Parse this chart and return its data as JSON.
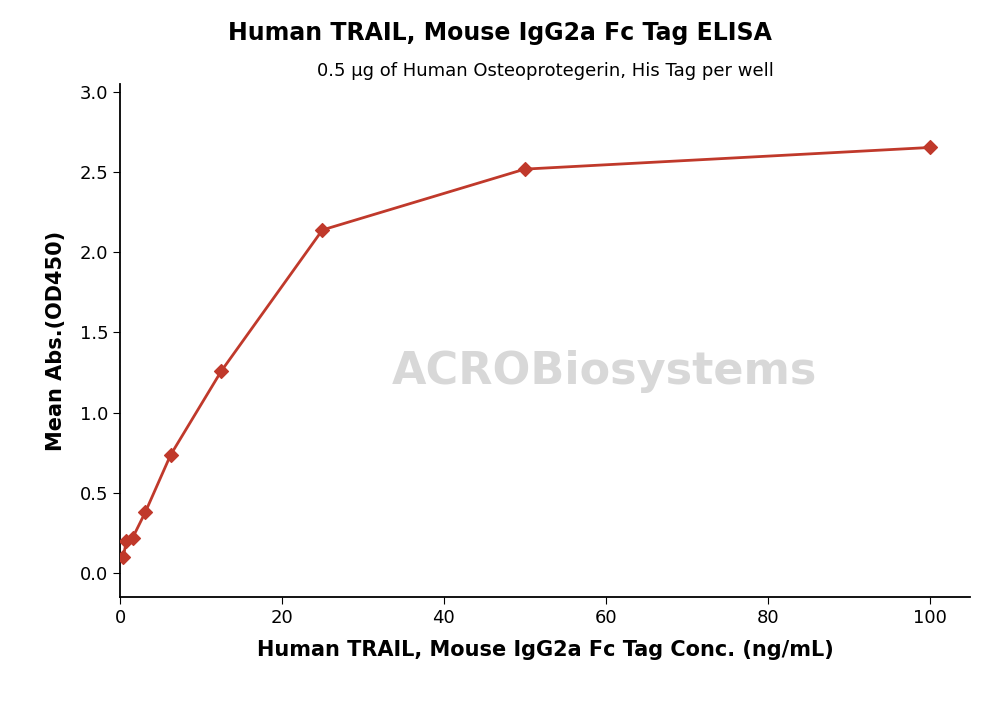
{
  "title": "Human TRAIL, Mouse IgG2a Fc Tag ELISA",
  "subtitle": "0.5 μg of Human Osteoprotegerin, His Tag per well",
  "xlabel": "Human TRAIL, Mouse IgG2a Fc Tag Conc. (ng/mL)",
  "ylabel": "Mean Abs.(OD450)",
  "x_data": [
    0.4,
    0.78,
    1.56,
    3.13,
    6.25,
    12.5,
    25,
    50,
    100
  ],
  "y_data": [
    0.098,
    0.195,
    0.218,
    0.378,
    0.735,
    1.258,
    2.14,
    2.52,
    2.655
  ],
  "xlim": [
    0,
    105
  ],
  "ylim": [
    -0.15,
    3.05
  ],
  "yticks": [
    0.0,
    0.5,
    1.0,
    1.5,
    2.0,
    2.5,
    3.0
  ],
  "xticks": [
    0,
    20,
    40,
    60,
    80,
    100
  ],
  "color": "#c0392b",
  "marker": "D",
  "markersize": 7,
  "linewidth": 2.0,
  "title_fontsize": 17,
  "subtitle_fontsize": 13,
  "axis_label_fontsize": 15,
  "tick_fontsize": 13,
  "watermark_text": "ACROBiosystems",
  "watermark_color": "#d8d8d8",
  "watermark_fontsize": 32,
  "background_color": "#ffffff"
}
